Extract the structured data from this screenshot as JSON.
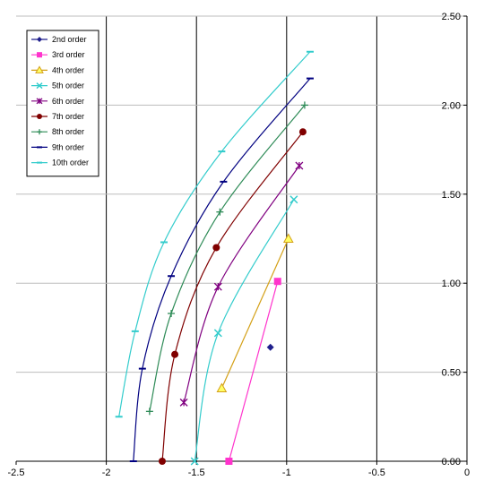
{
  "chart_data": {
    "type": "line",
    "title": "",
    "xlabel": "",
    "ylabel": "",
    "xlim": [
      -2.5,
      0
    ],
    "ylim": [
      0,
      2.5
    ],
    "x_ticks": [
      "-2.5",
      "-2",
      "-1.5",
      "-1",
      "-0.5",
      "0"
    ],
    "y_ticks": [
      "0.00",
      "0.50",
      "1.00",
      "1.50",
      "2.00",
      "2.50"
    ],
    "grid": {
      "vertical": true,
      "horizontal": true
    },
    "legend_position": "top-left",
    "series": [
      {
        "name": "2nd order",
        "color": "#1f1f8c",
        "marker": "diamond",
        "points": [
          [
            -1.09,
            0.64
          ]
        ]
      },
      {
        "name": "3rd order",
        "color": "#ff33cc",
        "marker": "square",
        "points": [
          [
            -1.32,
            0.0
          ],
          [
            -1.05,
            1.01
          ]
        ]
      },
      {
        "name": "4th order",
        "color": "#d4a017",
        "marker": "triangle",
        "points": [
          [
            -1.36,
            0.41
          ],
          [
            -0.99,
            1.25
          ]
        ]
      },
      {
        "name": "5th order",
        "color": "#33cccc",
        "marker": "x",
        "points": [
          [
            -1.51,
            0.0
          ],
          [
            -1.38,
            0.72
          ],
          [
            -0.96,
            1.47
          ]
        ]
      },
      {
        "name": "6th order",
        "color": "#800080",
        "marker": "star",
        "points": [
          [
            -1.57,
            0.33
          ],
          [
            -1.38,
            0.98
          ],
          [
            -0.93,
            1.66
          ]
        ]
      },
      {
        "name": "7th order",
        "color": "#800000",
        "marker": "circle",
        "points": [
          [
            -1.69,
            0.0
          ],
          [
            -1.62,
            0.6
          ],
          [
            -1.39,
            1.2
          ],
          [
            -0.91,
            1.85
          ]
        ]
      },
      {
        "name": "8th order",
        "color": "#2e8b57",
        "marker": "plus",
        "points": [
          [
            -1.76,
            0.28
          ],
          [
            -1.64,
            0.83
          ],
          [
            -1.37,
            1.4
          ],
          [
            -0.9,
            2.0
          ]
        ]
      },
      {
        "name": "9th order",
        "color": "#000080",
        "marker": "dash",
        "points": [
          [
            -1.85,
            0.0
          ],
          [
            -1.8,
            0.52
          ],
          [
            -1.64,
            1.04
          ],
          [
            -1.35,
            1.57
          ],
          [
            -0.87,
            2.15
          ]
        ]
      },
      {
        "name": "10th order",
        "color": "#33cccc",
        "marker": "dash",
        "points": [
          [
            -1.93,
            0.25
          ],
          [
            -1.84,
            0.73
          ],
          [
            -1.68,
            1.23
          ],
          [
            -1.36,
            1.74
          ],
          [
            -0.87,
            2.3
          ]
        ]
      }
    ]
  }
}
